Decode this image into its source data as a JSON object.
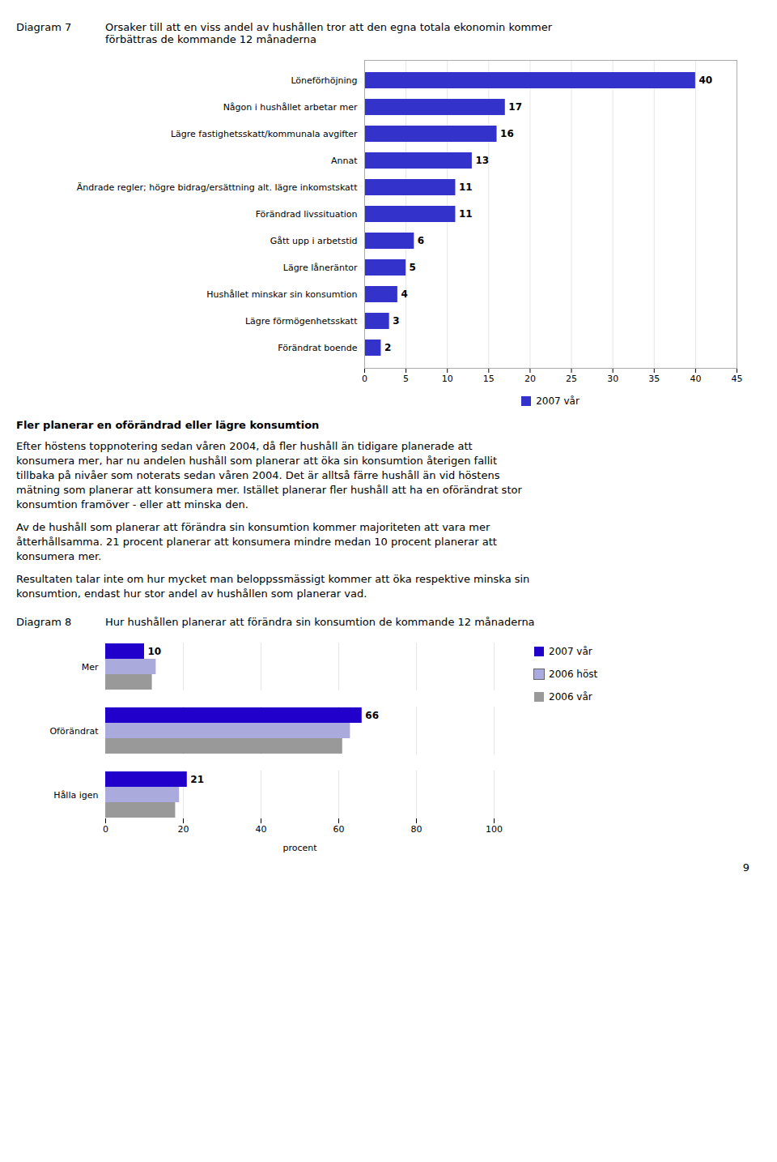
{
  "chart_data": [
    {
      "type": "bar",
      "orientation": "horizontal",
      "title": "Diagram 7",
      "subtitle": "Orsaker till att en viss andel av hushållen tror att den egna totala ekonomin kommer\nförbättras de kommande 12 månaderna",
      "categories": [
        "Förändrat boende",
        "Lägre förmögenhetsskatt",
        "Hushållet minskar sin konsumtion",
        "Lägre låneräntor",
        "Gått upp i arbetstid",
        "Förändrad livssituation",
        "Ändrade regler; högre bidrag/ersättning alt. lägre inkomstskatt",
        "Annat",
        "Lägre fastighetsskatt/kommunala avgifter",
        "Någon i hushållet arbetar mer",
        "Löneförhöjning"
      ],
      "series": [
        {
          "name": "2007 vår",
          "color": "#3333cc",
          "values": [
            2,
            3,
            4,
            5,
            6,
            11,
            11,
            13,
            16,
            17,
            40
          ]
        }
      ],
      "xlim": [
        0,
        45
      ],
      "xticks": [
        0,
        5,
        10,
        15,
        20,
        25,
        30,
        35,
        40,
        45
      ],
      "grid": true,
      "legend": "bottom",
      "data_labels": true
    },
    {
      "type": "bar",
      "orientation": "horizontal",
      "title": "Diagram 8",
      "subtitle": "Hur hushållen planerar att förändra sin konsumtion de kommande 12 månaderna",
      "categories": [
        "Hålla igen",
        "Oförändrat",
        "Mer"
      ],
      "series": [
        {
          "name": "2007 vår",
          "color": "#2200cc",
          "values": [
            21,
            66,
            10
          ],
          "data_labels": true
        },
        {
          "name": "2006 höst",
          "color": "#aaaadd",
          "values": [
            19,
            63,
            13
          ]
        },
        {
          "name": "2006 vår",
          "color": "#999999",
          "values": [
            18,
            61,
            12
          ]
        }
      ],
      "xlim": [
        0,
        100
      ],
      "xticks": [
        0,
        20,
        40,
        60,
        80,
        100
      ],
      "xlabel": "procent",
      "grid": true,
      "legend": "right"
    }
  ],
  "annotations": [
    "Fler planerar en oförändrad eller lägre konsumtion",
    "Efter höstens toppnotering sedan våren 2004, då fler hushåll än tidigare planerade att\nkonsumera mer, har nu andelen hushåll som planerar att öka sin konsumtion återigen fallit\ntillbaka på nivåer som noterats sedan våren 2004. Det är alltså färre hushåll än vid höstens\nmätning som planerar att konsumera mer. Istället planerar fler hushåll att ha en oförändrat stor\nkonsumtion framöver - eller att minska den.",
    "Av de hushåll som planerar att förändra sin konsumtion kommer majoriteten att vara mer\nåtterhållsamma. 21 procent planerar att konsumera mindre medan 10 procent planerar att\nkonsumera mer.",
    "Resultaten talar inte om hur mycket man beloppssmässigt kommer att öka respektive minska sin\nkonsumtion, endast hur stor andel av hushållen som planerar vad.",
    "9"
  ]
}
